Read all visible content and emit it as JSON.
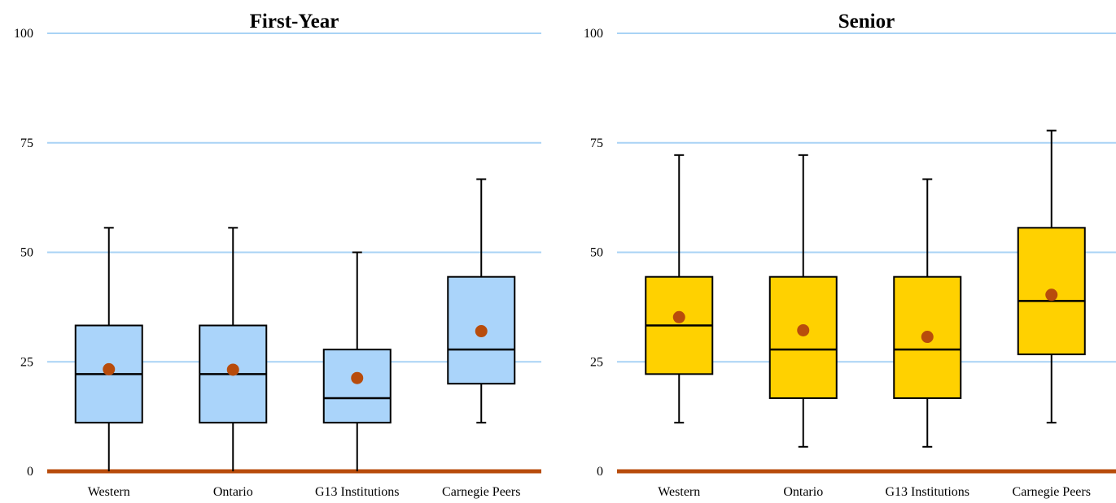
{
  "chart_data": [
    {
      "type": "box",
      "title": "First-Year",
      "categories": [
        "Western",
        "Ontario",
        "G13 Institutions",
        "Carnegie Peers"
      ],
      "ylim": [
        0,
        100
      ],
      "yticks": [
        "0",
        "25",
        "50",
        "75",
        "100"
      ],
      "grid": true,
      "box_color": "#aad4fa",
      "mean_color": "#b84c0c",
      "baseline_color": "#b84c0c",
      "gridline_color": "#a9d3f5",
      "boxes": [
        {
          "whisker_low": 0,
          "q1": 11.1,
          "median": 22.2,
          "q3": 33.3,
          "whisker_high": 55.6,
          "mean": 23.3
        },
        {
          "whisker_low": 0,
          "q1": 11.1,
          "median": 22.2,
          "q3": 33.3,
          "whisker_high": 55.6,
          "mean": 23.2
        },
        {
          "whisker_low": 0,
          "q1": 11.1,
          "median": 16.7,
          "q3": 27.8,
          "whisker_high": 50.0,
          "mean": 21.3
        },
        {
          "whisker_low": 11.1,
          "q1": 20.0,
          "median": 27.8,
          "q3": 44.4,
          "whisker_high": 66.7,
          "mean": 32.0
        }
      ]
    },
    {
      "type": "box",
      "title": "Senior",
      "categories": [
        "Western",
        "Ontario",
        "G13 Institutions",
        "Carnegie Peers"
      ],
      "ylim": [
        0,
        100
      ],
      "yticks": [
        "0",
        "25",
        "50",
        "75",
        "100"
      ],
      "grid": true,
      "box_color": "#ffd100",
      "mean_color": "#b84c0c",
      "baseline_color": "#b84c0c",
      "gridline_color": "#a9d3f5",
      "boxes": [
        {
          "whisker_low": 11.1,
          "q1": 22.2,
          "median": 33.3,
          "q3": 44.4,
          "whisker_high": 72.2,
          "mean": 35.2
        },
        {
          "whisker_low": 5.6,
          "q1": 16.7,
          "median": 27.8,
          "q3": 44.4,
          "whisker_high": 72.2,
          "mean": 32.2
        },
        {
          "whisker_low": 5.6,
          "q1": 16.7,
          "median": 27.8,
          "q3": 44.4,
          "whisker_high": 66.7,
          "mean": 30.7
        },
        {
          "whisker_low": 11.1,
          "q1": 26.7,
          "median": 38.9,
          "q3": 55.6,
          "whisker_high": 77.8,
          "mean": 40.3
        }
      ]
    }
  ]
}
